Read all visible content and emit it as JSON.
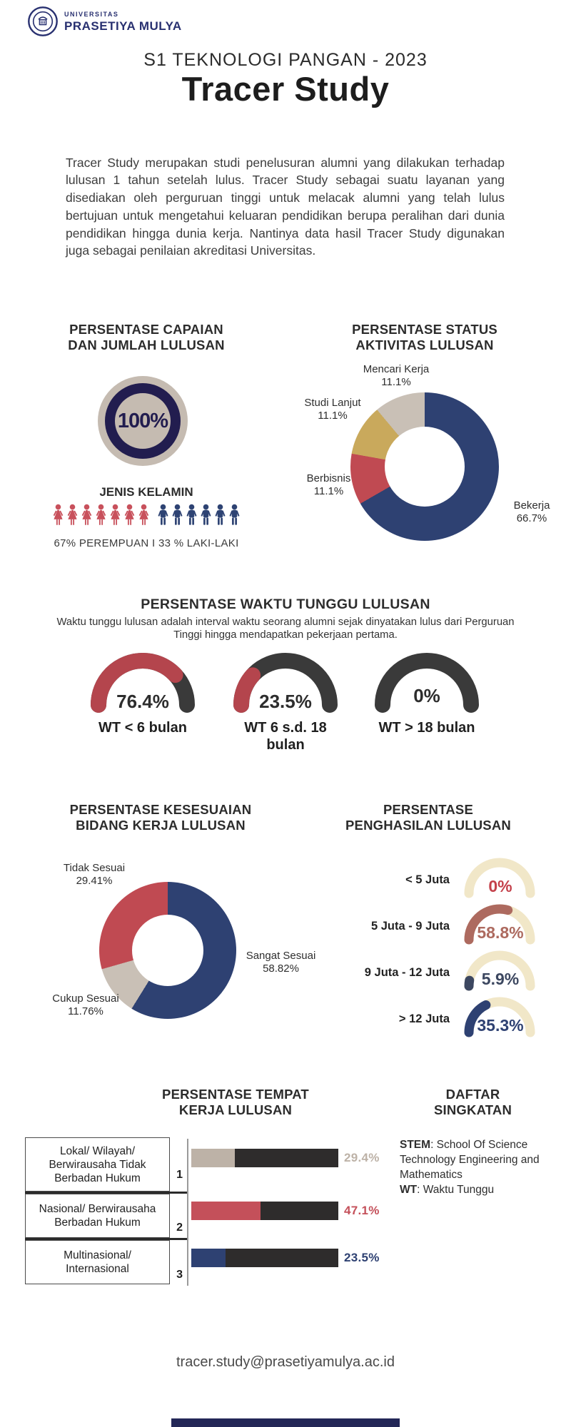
{
  "logo": {
    "line1": "UNIVERSITAS",
    "line2": "PRASETIYA MULYA",
    "color": "#283070"
  },
  "header": {
    "subtitle": "S1 TEKNOLOGI PANGAN - 2023",
    "title": "Tracer Study"
  },
  "intro": {
    "text": "Tracer Study merupakan studi penelusuran alumni yang dilakukan terhadap lulusan 1 tahun setelah lulus. Tracer Study sebagai suatu layanan yang disediakan oleh perguruan tinggi untuk melacak alumni yang telah lulus bertujuan untuk mengetahui keluaran pendidikan berupa peralihan dari dunia pendidikan hingga dunia kerja. Nantinya data hasil Tracer Study digunakan juga sebagai penilaian akreditasi Universitas."
  },
  "capaian": {
    "title1": "PERSENTASE CAPAIAN",
    "title2": "DAN JUMLAH LULUSAN",
    "badge": "100%"
  },
  "gender": {
    "title": "JENIS KELAMIN",
    "caption": "67% PEREMPUAN  I  33 % LAKI-LAKI",
    "female": {
      "count": 7,
      "color": "#C8515C"
    },
    "male": {
      "count": 6,
      "color": "#2E4373"
    }
  },
  "status": {
    "title1": "PERSENTASE STATUS",
    "title2": "AKTIVITAS LULUSAN"
  },
  "wt": {
    "title": "PERSENTASE WAKTU TUNGGU LULUSAN",
    "desc": "Waktu tunggu lulusan adalah interval waktu seorang alumni sejak dinyatakan lulus dari Perguruan Tinggi hingga mendapatkan pekerjaan pertama."
  },
  "kesesuaian": {
    "title1": "PERSENTASE KESESUAIAN",
    "title2": "BIDANG KERJA LULUSAN"
  },
  "income": {
    "title1": "PERSENTASE",
    "title2": "PENGHASILAN LULUSAN"
  },
  "tempat": {
    "title1": "PERSENTASE TEMPAT",
    "title2": "KERJA LULUSAN"
  },
  "singkatan": {
    "title1": "DAFTAR",
    "title2": "SINGKATAN",
    "items": [
      {
        "abbr": "STEM",
        "meaning": ": School Of Science Technology Engineering and Mathematics"
      },
      {
        "abbr": "WT",
        "meaning": ": Waktu Tunggu"
      }
    ]
  },
  "footer": {
    "email": "tracer.study@prasetiyamulya.ac.id"
  },
  "chart_data": [
    {
      "id": "status_aktivitas_lulusan",
      "type": "pie",
      "variant": "donut",
      "title": "PERSENTASE STATUS AKTIVITAS LULUSAN",
      "labels": [
        "Bekerja",
        "Berbisnis",
        "Studi Lanjut",
        "Mencari Kerja"
      ],
      "values": [
        66.7,
        11.1,
        11.1,
        11.1
      ],
      "display": [
        "66.7%",
        "11.1%",
        "11.1%",
        "11.1%"
      ],
      "colors": [
        "#2E4172",
        "#C04A52",
        "#C9A95C",
        "#C9C0B6"
      ],
      "start": "top, clockwise"
    },
    {
      "id": "waktu_tunggu_lulusan",
      "type": "bar",
      "variant": "semicircle-gauge",
      "title": "PERSENTASE WAKTU TUNGGU LULUSAN",
      "categories": [
        "WT < 6 bulan",
        "WT 6 s.d. 18 bulan",
        "WT > 18 bulan"
      ],
      "values": [
        76.4,
        23.5,
        0
      ],
      "display": [
        "76.4%",
        "23.5%",
        "0%"
      ],
      "fill_color": "#B4454D",
      "track_color": "#3A3A3A"
    },
    {
      "id": "kesesuaian_bidang_kerja",
      "type": "pie",
      "variant": "donut",
      "title": "PERSENTASE KESESUAIAN BIDANG KERJA LULUSAN",
      "labels": [
        "Sangat Sesuai",
        "Cukup Sesuai",
        "Tidak Sesuai"
      ],
      "values": [
        58.82,
        11.76,
        29.41
      ],
      "display": [
        "58.82%",
        "11.76%",
        "29.41%"
      ],
      "colors": [
        "#2E4172",
        "#C9C0B6",
        "#C04A52"
      ],
      "start": "top, clockwise"
    },
    {
      "id": "penghasilan_lulusan",
      "type": "bar",
      "variant": "semicircle-gauge",
      "title": "PERSENTASE PENGHASILAN LULUSAN",
      "categories": [
        "< 5 Juta",
        "5 Juta - 9 Juta",
        "9 Juta - 12 Juta",
        "> 12 Juta"
      ],
      "values": [
        0,
        58.8,
        5.9,
        35.3
      ],
      "display": [
        "0%",
        "58.8%",
        "5.9%",
        "35.3%"
      ],
      "colors": [
        "#C4414B",
        "#AD6A5F",
        "#3C4760",
        "#2E4172"
      ],
      "track_color": "#F1E7C8"
    },
    {
      "id": "tempat_kerja_lulusan",
      "type": "bar",
      "variant": "horizontal-stacked",
      "title": "PERSENTASE TEMPAT KERJA LULUSAN",
      "categories": [
        "Lokal/ Wilayah/ Berwirausaha Tidak Berbadan Hukum",
        "Nasional/ Berwirausaha Berbadan Hukum",
        "Multinasional/ Internasional"
      ],
      "values": [
        29.4,
        47.1,
        23.5
      ],
      "display": [
        "29.4%",
        "47.1%",
        "23.5%"
      ],
      "colors": [
        "#BDB2A7",
        "#C4505A",
        "#2E4172"
      ],
      "remainder_color": "#2E2C2C",
      "row_numbers": [
        "1",
        "2",
        "3"
      ]
    }
  ]
}
